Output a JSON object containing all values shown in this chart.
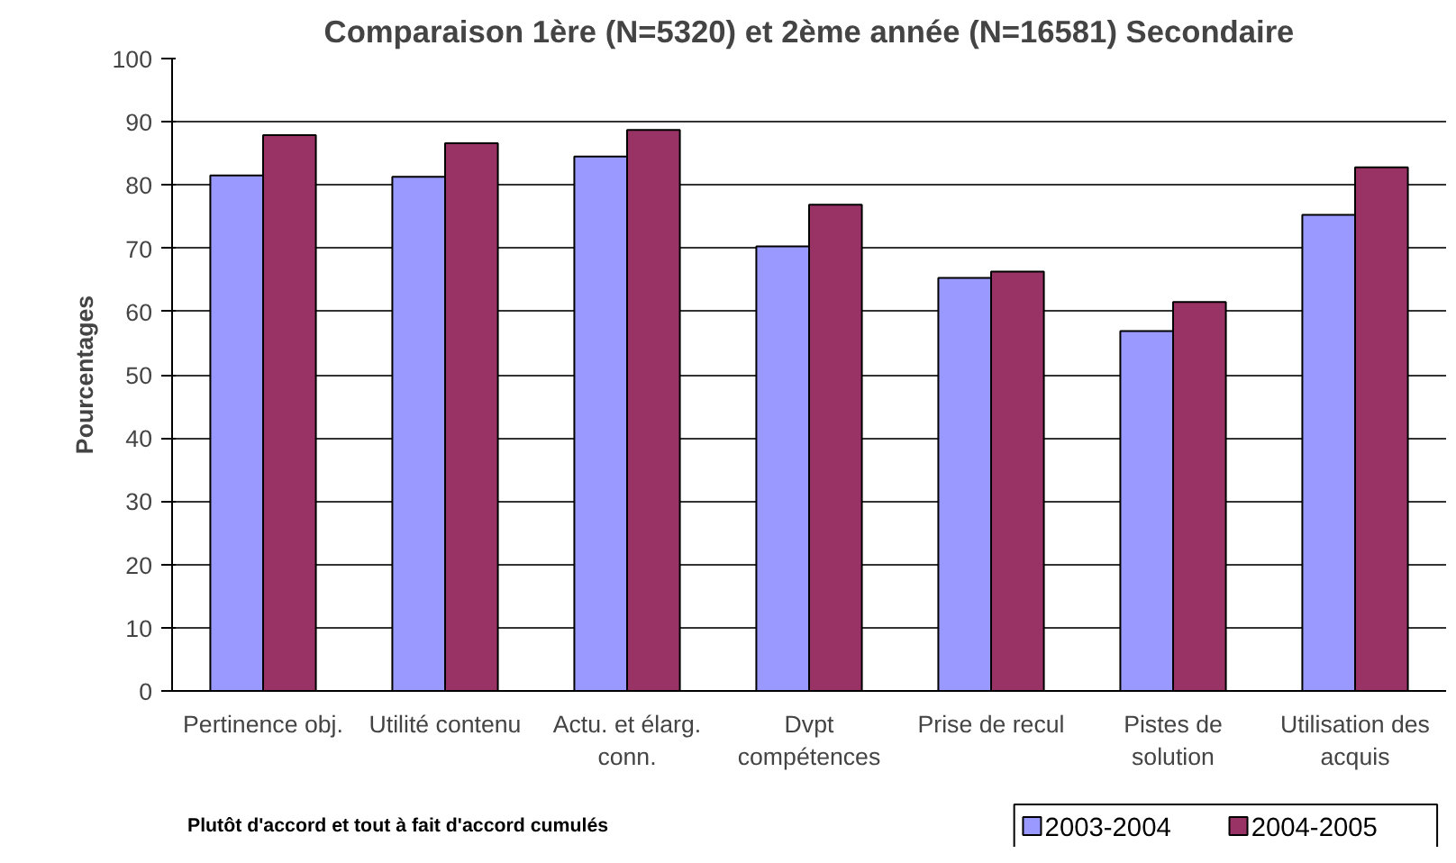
{
  "chart_data": {
    "type": "bar",
    "title": "Comparaison 1ère (N=5320) et 2ème année (N=16581) Secondaire",
    "ylabel": "Pourcentages",
    "categories": [
      "Pertinence obj.",
      "Utilité contenu",
      "Actu. et élarg. conn.",
      "Dvpt compétences",
      "Prise de recul",
      "Pistes de solution",
      "Utilisation des acquis"
    ],
    "series": [
      {
        "name": "2003-2004",
        "color": "#9999ff",
        "values": [
          81.5,
          81.3,
          84.5,
          70.3,
          65.3,
          56.9,
          75.3
        ]
      },
      {
        "name": "2004-2005",
        "color": "#993366",
        "values": [
          87.9,
          86.6,
          88.7,
          76.9,
          66.3,
          61.5,
          82.8
        ]
      }
    ],
    "ylim": [
      0,
      100
    ],
    "yticks": [
      0,
      10,
      20,
      30,
      40,
      50,
      60,
      70,
      80,
      90,
      100
    ],
    "grid": "y",
    "legend": "bottom right",
    "annotations": [
      "Plutôt d'accord et tout à fait d'accord cumulés"
    ]
  }
}
